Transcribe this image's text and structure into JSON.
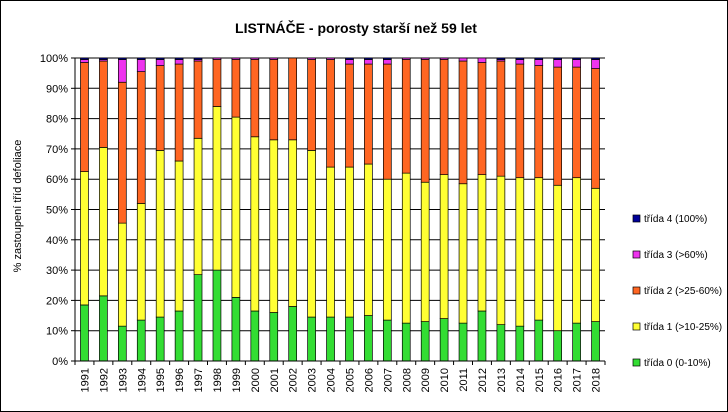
{
  "chart_data": {
    "type": "bar",
    "stacked": true,
    "title": "LISTNÁČE - porosty starší než 59 let",
    "xlabel": "",
    "ylabel": "% zastoupení tříd defoliace",
    "ylim": [
      0,
      100
    ],
    "y_ticks": [
      "0%",
      "10%",
      "20%",
      "30%",
      "40%",
      "50%",
      "60%",
      "70%",
      "80%",
      "90%",
      "100%"
    ],
    "grid": true,
    "legend_placement": "right",
    "categories": [
      "1991",
      "1992",
      "1993",
      "1994",
      "1995",
      "1996",
      "1997",
      "1998",
      "1999",
      "2000",
      "2001",
      "2002",
      "2003",
      "2004",
      "2005",
      "2006",
      "2007",
      "2008",
      "2009",
      "2010",
      "2011",
      "2012",
      "2013",
      "2014",
      "2015",
      "2016",
      "2017",
      "2018"
    ],
    "series": [
      {
        "name": "třída 0 (0-10%)",
        "color": "#33dd33",
        "values": [
          18.5,
          21.5,
          11.5,
          13.5,
          14.5,
          16.5,
          28.5,
          30,
          21,
          16.5,
          16,
          18,
          14.5,
          14.5,
          14.5,
          15,
          13.5,
          12.5,
          13,
          14,
          12.5,
          16.5,
          12,
          11.5,
          13.5,
          10,
          12.5,
          13
        ]
      },
      {
        "name": "třída 1 (>10-25%)",
        "color": "#ffff33",
        "values": [
          44,
          49,
          34,
          38.5,
          55,
          49.5,
          45,
          54,
          59.5,
          57.5,
          57,
          55,
          55,
          49.5,
          49.5,
          50,
          46.5,
          49.5,
          46,
          47.5,
          46,
          45,
          49,
          49,
          47,
          48,
          48,
          44
        ]
      },
      {
        "name": "třída 2 (>25-60%)",
        "color": "#ff6622",
        "values": [
          36,
          28.5,
          46.5,
          43.5,
          28,
          32,
          25.5,
          15.5,
          19,
          25.5,
          26.5,
          27,
          30,
          35.5,
          34,
          33,
          38,
          37.5,
          40.5,
          38,
          40.5,
          37,
          38,
          37.5,
          37,
          39,
          36.5,
          39.5
        ]
      },
      {
        "name": "třída 3 (>60%)",
        "color": "#ee33ee",
        "values": [
          1,
          0.5,
          7.5,
          4,
          2,
          1.5,
          0.5,
          0.5,
          0.5,
          0.5,
          0.5,
          0,
          0.5,
          0.5,
          1.5,
          1.5,
          1.5,
          0.5,
          0.5,
          0.5,
          1,
          1.5,
          0.5,
          1.5,
          2,
          2.5,
          2.5,
          3
        ]
      },
      {
        "name": "třída 4 (100%)",
        "color": "#000099",
        "values": [
          0.5,
          0.5,
          0.5,
          0.5,
          0.5,
          0.5,
          0.5,
          0,
          0,
          0,
          0,
          0,
          0,
          0,
          0.5,
          0.5,
          0.5,
          0,
          0,
          0,
          0,
          0,
          0.5,
          0.5,
          0.5,
          0.5,
          0.5,
          0.5
        ]
      }
    ]
  }
}
